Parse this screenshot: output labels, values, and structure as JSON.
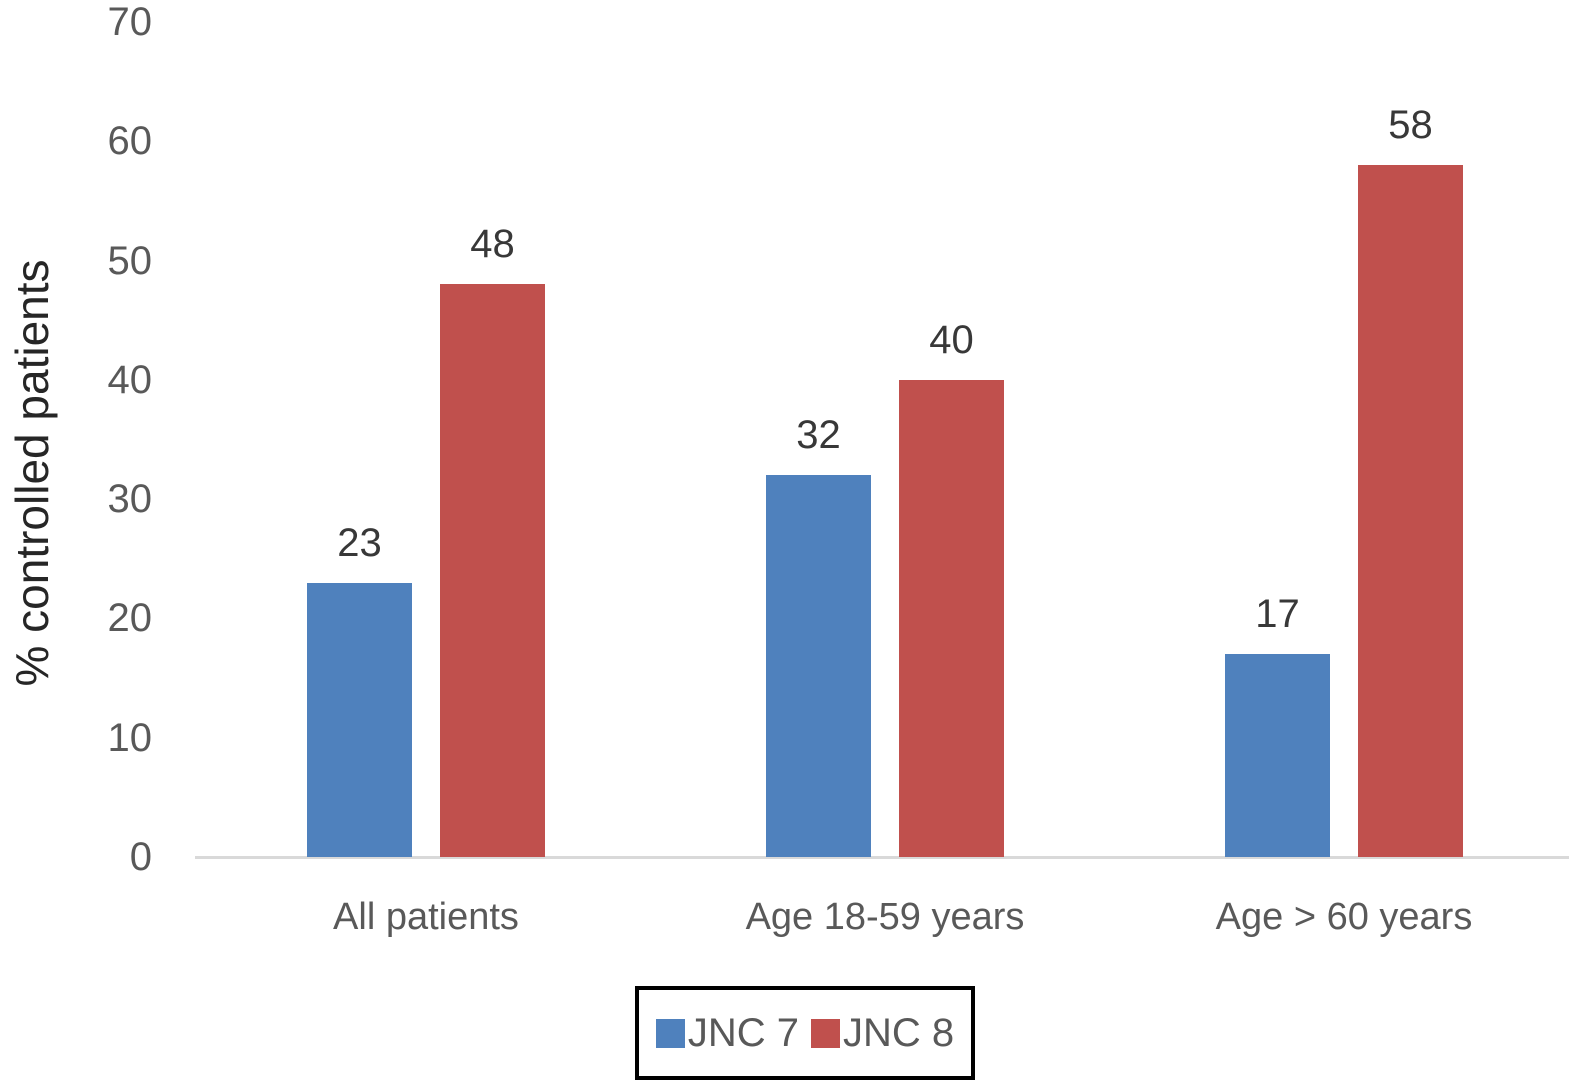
{
  "chart_data": {
    "type": "bar",
    "title": "",
    "xlabel": "",
    "ylabel": "% controlled patients",
    "categories": [
      "All patients",
      "Age 18-59 years",
      "Age > 60 years"
    ],
    "series": [
      {
        "name": "JNC 7",
        "color": "#4F81BD",
        "values": [
          23,
          32,
          17
        ]
      },
      {
        "name": "JNC 8",
        "color": "#C0504D",
        "values": [
          48,
          40,
          58
        ]
      }
    ],
    "ylim": [
      0,
      70
    ],
    "yticks": [
      0,
      10,
      20,
      30,
      40,
      50,
      60,
      70
    ],
    "grid": false,
    "data_labels": true,
    "legend_position": "bottom",
    "baseline_color": "#d9d9d9",
    "tick_label_color": "#595959",
    "data_label_color": "#383838",
    "axis_title_color": "#262626"
  }
}
